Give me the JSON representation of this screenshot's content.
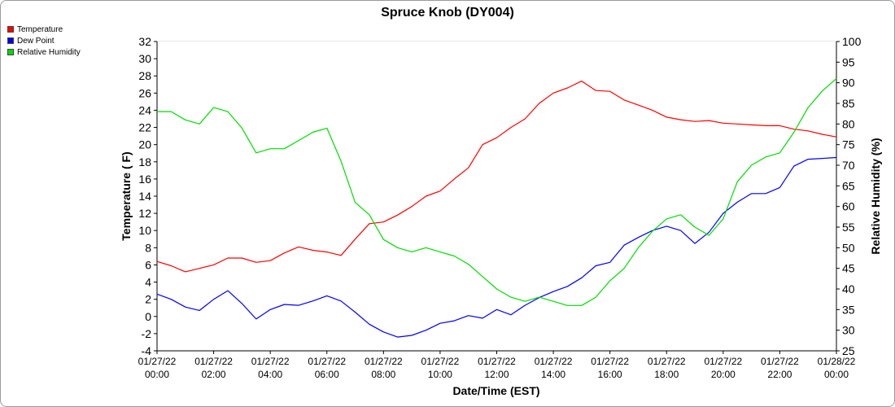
{
  "chart_data": {
    "type": "line",
    "title": "Spruce Knob (DY004)",
    "xlabel": "Date/Time (EST)",
    "ylabel": "Temperature ( F)",
    "y2label": "Relative Humidity (%)",
    "ylim": [
      -4,
      32
    ],
    "y2lim": [
      25,
      100
    ],
    "yticks": [
      -4,
      -2,
      0,
      2,
      4,
      6,
      8,
      10,
      12,
      14,
      16,
      18,
      20,
      22,
      24,
      26,
      28,
      30,
      32
    ],
    "y2ticks": [
      25,
      30,
      35,
      40,
      45,
      50,
      55,
      60,
      65,
      70,
      75,
      80,
      85,
      90,
      95,
      100
    ],
    "xlim": [
      0,
      24
    ],
    "xticks": [
      {
        "h": 0,
        "date": "01/27/22",
        "time": "00:00"
      },
      {
        "h": 2,
        "date": "01/27/22",
        "time": "02:00"
      },
      {
        "h": 4,
        "date": "01/27/22",
        "time": "04:00"
      },
      {
        "h": 6,
        "date": "01/27/22",
        "time": "06:00"
      },
      {
        "h": 8,
        "date": "01/27/22",
        "time": "08:00"
      },
      {
        "h": 10,
        "date": "01/27/22",
        "time": "10:00"
      },
      {
        "h": 12,
        "date": "01/27/22",
        "time": "12:00"
      },
      {
        "h": 14,
        "date": "01/27/22",
        "time": "14:00"
      },
      {
        "h": 16,
        "date": "01/27/22",
        "time": "16:00"
      },
      {
        "h": 18,
        "date": "01/27/22",
        "time": "18:00"
      },
      {
        "h": 20,
        "date": "01/27/22",
        "time": "20:00"
      },
      {
        "h": 22,
        "date": "01/27/22",
        "time": "22:00"
      },
      {
        "h": 24,
        "date": "01/28/22",
        "time": "00:00"
      }
    ],
    "grid": true,
    "legend_position": "top-left",
    "series": [
      {
        "name": "Temperature",
        "axis": "left",
        "color": "#ff0000",
        "x": [
          0,
          0.5,
          1,
          1.5,
          2,
          2.5,
          3,
          3.5,
          4,
          4.5,
          5,
          5.5,
          6,
          6.5,
          7,
          7.5,
          8,
          8.5,
          9,
          9.5,
          10,
          10.5,
          11,
          11.5,
          12,
          12.5,
          13,
          13.5,
          14,
          14.5,
          15,
          15.5,
          16,
          16.5,
          17,
          17.5,
          18,
          18.5,
          19,
          19.5,
          20,
          20.5,
          21,
          21.5,
          22,
          22.5,
          23,
          23.5,
          24
        ],
        "y": [
          6.4,
          5.9,
          5.2,
          5.6,
          6.0,
          6.8,
          6.8,
          6.3,
          6.5,
          7.4,
          8.1,
          7.7,
          7.5,
          7.1,
          9.0,
          10.8,
          11.0,
          11.8,
          12.8,
          14.0,
          14.6,
          16.0,
          17.3,
          20.0,
          20.8,
          22.0,
          23.0,
          24.8,
          26.0,
          26.6,
          27.4,
          26.3,
          26.2,
          25.2,
          24.6,
          24.0,
          23.2,
          22.9,
          22.7,
          22.8,
          22.5,
          22.4,
          22.3,
          22.2,
          22.2,
          21.8,
          21.6,
          21.2,
          20.9
        ]
      },
      {
        "name": "Dew Point",
        "axis": "left",
        "color": "#0000ff",
        "x": [
          0,
          0.5,
          1,
          1.5,
          2,
          2.5,
          3,
          3.5,
          4,
          4.5,
          5,
          5.5,
          6,
          6.5,
          7,
          7.5,
          8,
          8.5,
          9,
          9.5,
          10,
          10.5,
          11,
          11.5,
          12,
          12.5,
          13,
          13.5,
          14,
          14.5,
          15,
          15.5,
          16,
          16.5,
          17,
          17.5,
          18,
          18.5,
          19,
          19.5,
          20,
          20.5,
          21,
          21.5,
          22,
          22.5,
          23,
          23.5,
          24
        ],
        "y": [
          2.6,
          2.0,
          1.1,
          0.7,
          2.0,
          3.0,
          1.5,
          -0.3,
          0.8,
          1.4,
          1.3,
          1.8,
          2.4,
          1.8,
          0.5,
          -0.9,
          -1.8,
          -2.4,
          -2.2,
          -1.6,
          -0.8,
          -0.5,
          0.1,
          -0.2,
          0.8,
          0.2,
          1.3,
          2.2,
          2.9,
          3.5,
          4.5,
          5.9,
          6.3,
          8.3,
          9.2,
          10.0,
          10.5,
          10.0,
          8.5,
          9.8,
          12.0,
          13.3,
          14.3,
          14.3,
          15.0,
          17.5,
          18.3,
          18.4,
          18.5
        ]
      },
      {
        "name": "Relative Humidity",
        "axis": "right",
        "color": "#00dd00",
        "x": [
          0,
          0.5,
          1,
          1.5,
          2,
          2.5,
          3,
          3.5,
          4,
          4.5,
          5,
          5.5,
          6,
          6.5,
          7,
          7.5,
          8,
          8.5,
          9,
          9.5,
          10,
          10.5,
          11,
          11.5,
          12,
          12.5,
          13,
          13.5,
          14,
          14.5,
          15,
          15.5,
          16,
          16.5,
          17,
          17.5,
          18,
          18.5,
          19,
          19.5,
          20,
          20.5,
          21,
          21.5,
          22,
          22.5,
          23,
          23.5,
          24
        ],
        "y": [
          83,
          83,
          81,
          80,
          84,
          83,
          79,
          73,
          74,
          74,
          76,
          78,
          79,
          71,
          61,
          58,
          52,
          50,
          49,
          50,
          49,
          48,
          46,
          43,
          40,
          38,
          37,
          38,
          37,
          36,
          36,
          38,
          42,
          45,
          50,
          54,
          57,
          58,
          55,
          53,
          57,
          66,
          70,
          72,
          73,
          78,
          84,
          88,
          91
        ]
      }
    ]
  }
}
